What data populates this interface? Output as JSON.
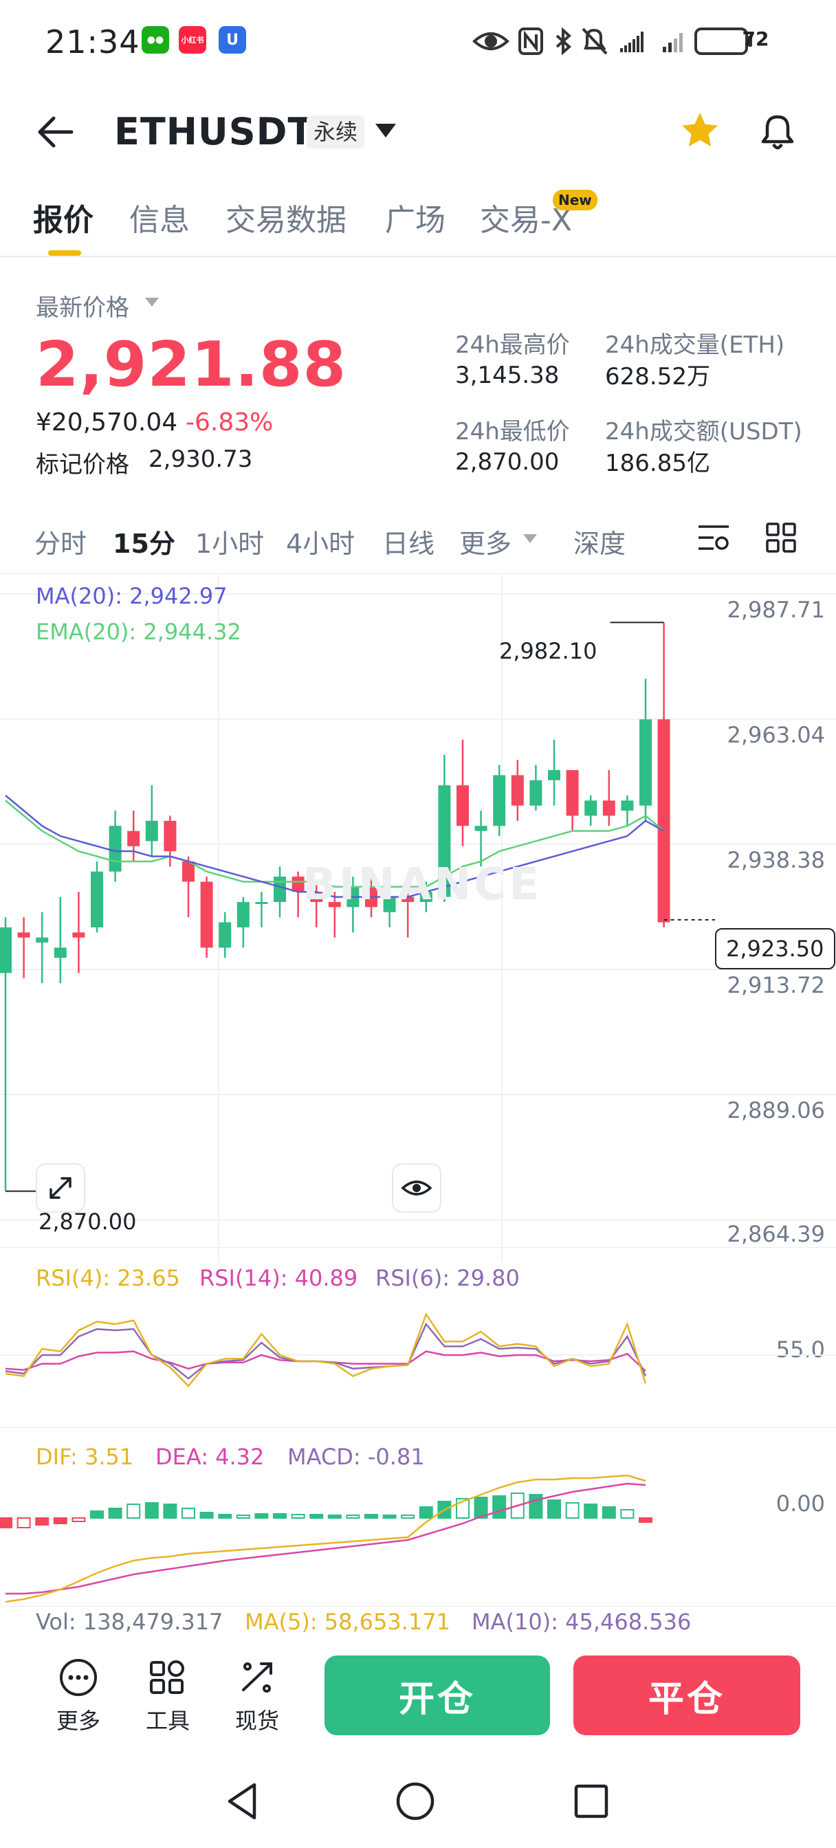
{
  "status_bar": {
    "time": "21:34",
    "battery": "72",
    "app_icons": [
      "wechat-icon",
      "xiaohongshu-icon",
      "u-app-icon"
    ],
    "icons": [
      "eye-icon",
      "nfc-icon",
      "bluetooth-icon",
      "mute-icon",
      "signal-icon",
      "signal-icon",
      "battery-icon"
    ]
  },
  "header": {
    "title": "ETHUSDT",
    "badge": "永续"
  },
  "tabs": [
    {
      "label": "报价",
      "active": true
    },
    {
      "label": "信息"
    },
    {
      "label": "交易数据"
    },
    {
      "label": "广场"
    },
    {
      "label": "交易-X",
      "badge": "New"
    }
  ],
  "price": {
    "label": "最新价格",
    "last": "2,921.88",
    "cny": "¥20,570.04",
    "change": "-6.83%",
    "mark_label": "标记价格",
    "mark": "2,930.73"
  },
  "stats": {
    "high_label": "24h最高价",
    "high": "3,145.38",
    "vol_eth_label": "24h成交量(ETH)",
    "vol_eth": "628.52万",
    "low_label": "24h最低价",
    "low": "2,870.00",
    "vol_usdt_label": "24h成交额(USDT)",
    "vol_usdt": "186.85亿"
  },
  "intervals": [
    {
      "label": "分时"
    },
    {
      "label": "15分",
      "active": true
    },
    {
      "label": "1小时"
    },
    {
      "label": "4小时"
    },
    {
      "label": "日线"
    },
    {
      "label": "更多"
    },
    {
      "label": "深度"
    }
  ],
  "chart": {
    "ma_label": "MA(20): 2,942.97",
    "ema_label": "EMA(20): 2,944.32",
    "y_ticks": [
      "2,987.71",
      "2,963.04",
      "2,938.38",
      "2,913.72",
      "2,889.06",
      "2,864.39"
    ],
    "high_marker": "2,982.10",
    "low_marker": "2,870.00",
    "current": "2,923.50",
    "watermark": "BINANCE",
    "colors": {
      "up": "#2ebd85",
      "down": "#f6465d",
      "ma": "#5b5bd6",
      "ema": "#5fd07a"
    }
  },
  "rsi": {
    "rsi4": "RSI(4): 23.65",
    "rsi14": "RSI(14): 40.89",
    "rsi6": "RSI(6): 29.80",
    "tick": "55.0"
  },
  "macd": {
    "dif": "DIF: 3.51",
    "dea": "DEA: 4.32",
    "macd": "MACD: -0.81",
    "tick": "0.00"
  },
  "volume": {
    "vol": "Vol: 138,479.317",
    "ma5": "MA(5): 58,653.171",
    "ma10": "MA(10): 45,468.536"
  },
  "bottom_bar": {
    "more": "更多",
    "tools": "工具",
    "spot": "现货",
    "open": "开仓",
    "close": "平仓"
  },
  "nav": [
    "back-nav-icon",
    "home-nav-icon",
    "recents-nav-icon"
  ]
}
